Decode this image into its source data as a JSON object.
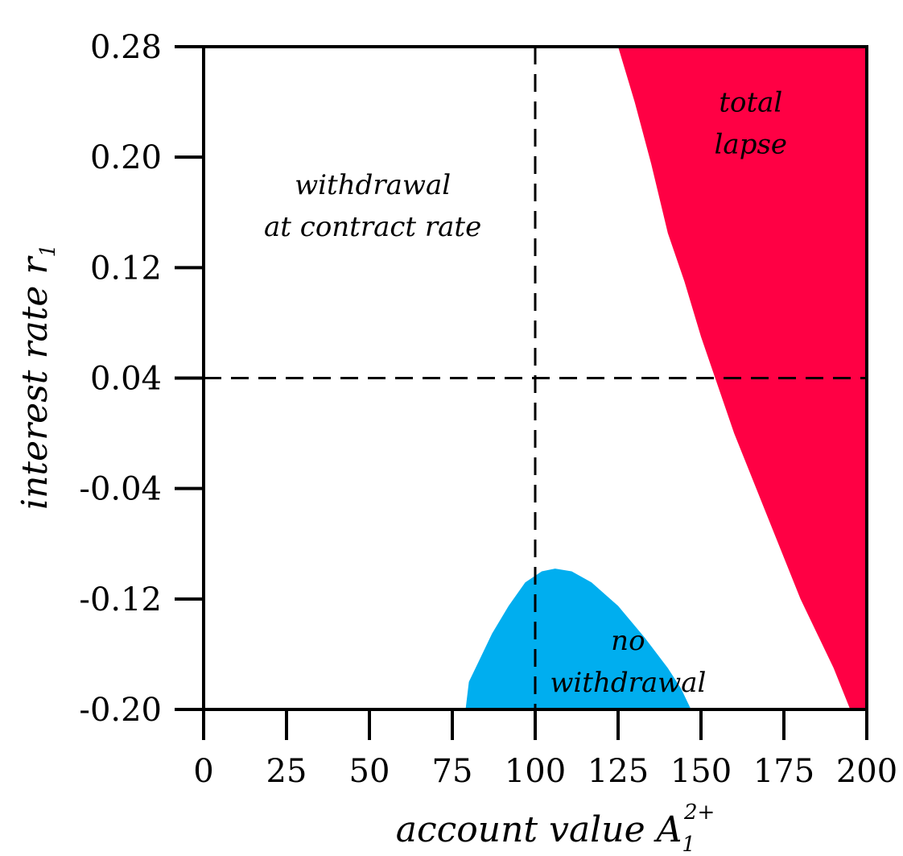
{
  "chart_data": {
    "type": "area",
    "title": "",
    "xlabel": "account value A",
    "xlabel_sub": "1",
    "xlabel_sup": "2+",
    "ylabel": "interest rate r",
    "ylabel_sub": "1",
    "xlim": [
      0,
      200
    ],
    "ylim": [
      -0.2,
      0.28
    ],
    "x_ticks": [
      0,
      25,
      50,
      75,
      100,
      125,
      150,
      175,
      200
    ],
    "x_tick_labels": [
      "0",
      "25",
      "50",
      "75",
      "100",
      "125",
      "150",
      "175",
      "200"
    ],
    "y_ticks": [
      0.28,
      0.2,
      0.12,
      0.04,
      -0.04,
      -0.12,
      -0.2
    ],
    "y_tick_labels": [
      "0.28",
      "0.20",
      "0.12",
      "0.04",
      "-0.04",
      "-0.12",
      "-0.20"
    ],
    "reference_lines": [
      {
        "orientation": "vertical",
        "value": 100,
        "style": "dashed"
      },
      {
        "orientation": "horizontal",
        "value": 0.04,
        "style": "dashed"
      }
    ],
    "regions": [
      {
        "name": "total lapse",
        "label_lines": [
          "total",
          "lapse"
        ],
        "label_at": [
          165,
          0.225
        ],
        "color": "#ff0044",
        "boundary": [
          [
            125,
            0.28
          ],
          [
            130,
            0.24
          ],
          [
            135,
            0.195
          ],
          [
            140,
            0.145
          ],
          [
            145,
            0.11
          ],
          [
            150,
            0.07
          ],
          [
            155,
            0.035
          ],
          [
            160,
            0.0
          ],
          [
            165,
            -0.03
          ],
          [
            170,
            -0.06
          ],
          [
            175,
            -0.09
          ],
          [
            180,
            -0.12
          ],
          [
            185,
            -0.145
          ],
          [
            190,
            -0.17
          ],
          [
            195,
            -0.2
          ],
          [
            200,
            -0.2
          ],
          [
            200,
            0.28
          ]
        ]
      },
      {
        "name": "no withdrawal",
        "label_lines": [
          "no",
          "withdrawal"
        ],
        "label_at": [
          128,
          -0.165
        ],
        "color": "#00aeef",
        "boundary": [
          [
            79,
            -0.2
          ],
          [
            80,
            -0.18
          ],
          [
            83,
            -0.165
          ],
          [
            87,
            -0.145
          ],
          [
            92,
            -0.125
          ],
          [
            97,
            -0.108
          ],
          [
            102,
            -0.1
          ],
          [
            106,
            -0.098
          ],
          [
            111,
            -0.1
          ],
          [
            117,
            -0.108
          ],
          [
            125,
            -0.125
          ],
          [
            133,
            -0.148
          ],
          [
            140,
            -0.17
          ],
          [
            144,
            -0.185
          ],
          [
            147,
            -0.2
          ]
        ]
      },
      {
        "name": "withdrawal at contract rate",
        "label_lines": [
          "withdrawal",
          "at contract rate"
        ],
        "label_at": [
          51,
          0.165
        ],
        "color": "#ffffff"
      }
    ]
  }
}
